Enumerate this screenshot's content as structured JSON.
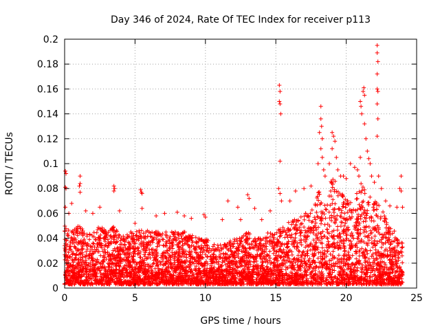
{
  "chart_data": {
    "type": "scatter",
    "title": "Day 346 of 2024, Rate Of TEC Index for receiver p113",
    "xlabel": "GPS time / hours",
    "ylabel": "ROTI / TECUs",
    "xlim": [
      0,
      25
    ],
    "ylim": [
      0,
      0.2
    ],
    "xticks": [
      0,
      5,
      10,
      15,
      20,
      25
    ],
    "yticks": [
      0,
      0.02,
      0.04,
      0.06,
      0.08,
      0.1,
      0.12,
      0.14,
      0.16,
      0.18,
      0.2
    ],
    "grid": true,
    "legend": "none",
    "marker": "plus",
    "color": "#ff0000",
    "x_range_of_data": [
      0,
      24
    ],
    "envelope": {
      "x": [
        0,
        0.5,
        1,
        1.5,
        2,
        2.5,
        3,
        3.5,
        4,
        4.5,
        5,
        5.5,
        6,
        6.5,
        7,
        7.5,
        8,
        8.5,
        9,
        9.5,
        10,
        10.5,
        11,
        11.5,
        12,
        12.5,
        13,
        13.5,
        14,
        14.5,
        15,
        15.5,
        16,
        16.5,
        17,
        17.5,
        18,
        18.5,
        19,
        19.5,
        20,
        20.5,
        21,
        21.5,
        22,
        22.5,
        23,
        23.5,
        24
      ],
      "typical_max": [
        0.05,
        0.045,
        0.05,
        0.045,
        0.045,
        0.05,
        0.045,
        0.05,
        0.04,
        0.045,
        0.045,
        0.05,
        0.045,
        0.045,
        0.045,
        0.045,
        0.045,
        0.045,
        0.045,
        0.04,
        0.04,
        0.035,
        0.035,
        0.035,
        0.04,
        0.04,
        0.045,
        0.04,
        0.04,
        0.045,
        0.045,
        0.05,
        0.055,
        0.055,
        0.06,
        0.06,
        0.08,
        0.07,
        0.09,
        0.08,
        0.07,
        0.07,
        0.085,
        0.075,
        0.07,
        0.065,
        0.05,
        0.045,
        0.04
      ]
    },
    "spikes": [
      {
        "x": 0.05,
        "y": 0.094
      },
      {
        "x": 0.1,
        "y": 0.092
      },
      {
        "x": 0.05,
        "y": 0.081
      },
      {
        "x": 0.1,
        "y": 0.08
      },
      {
        "x": 0.05,
        "y": 0.065
      },
      {
        "x": 0.3,
        "y": 0.06
      },
      {
        "x": 0.5,
        "y": 0.068
      },
      {
        "x": 1.1,
        "y": 0.09
      },
      {
        "x": 1.1,
        "y": 0.084
      },
      {
        "x": 1.05,
        "y": 0.082
      },
      {
        "x": 1.1,
        "y": 0.077
      },
      {
        "x": 1.5,
        "y": 0.062
      },
      {
        "x": 2.5,
        "y": 0.065
      },
      {
        "x": 2.0,
        "y": 0.06
      },
      {
        "x": 3.5,
        "y": 0.082
      },
      {
        "x": 3.55,
        "y": 0.08
      },
      {
        "x": 3.5,
        "y": 0.078
      },
      {
        "x": 3.9,
        "y": 0.062
      },
      {
        "x": 5.4,
        "y": 0.079
      },
      {
        "x": 5.45,
        "y": 0.077
      },
      {
        "x": 5.5,
        "y": 0.076
      },
      {
        "x": 5.5,
        "y": 0.064
      },
      {
        "x": 5.0,
        "y": 0.052
      },
      {
        "x": 6.5,
        "y": 0.058
      },
      {
        "x": 7.1,
        "y": 0.06
      },
      {
        "x": 8.0,
        "y": 0.061
      },
      {
        "x": 8.5,
        "y": 0.058
      },
      {
        "x": 9.0,
        "y": 0.056
      },
      {
        "x": 9.9,
        "y": 0.059
      },
      {
        "x": 10.0,
        "y": 0.057
      },
      {
        "x": 11.6,
        "y": 0.07
      },
      {
        "x": 11.2,
        "y": 0.055
      },
      {
        "x": 12.3,
        "y": 0.065
      },
      {
        "x": 12.5,
        "y": 0.055
      },
      {
        "x": 13.0,
        "y": 0.075
      },
      {
        "x": 13.1,
        "y": 0.072
      },
      {
        "x": 13.5,
        "y": 0.064
      },
      {
        "x": 14.0,
        "y": 0.055
      },
      {
        "x": 14.6,
        "y": 0.062
      },
      {
        "x": 15.2,
        "y": 0.08
      },
      {
        "x": 15.25,
        "y": 0.163
      },
      {
        "x": 15.3,
        "y": 0.158
      },
      {
        "x": 15.25,
        "y": 0.15
      },
      {
        "x": 15.3,
        "y": 0.148
      },
      {
        "x": 15.35,
        "y": 0.14
      },
      {
        "x": 15.3,
        "y": 0.102
      },
      {
        "x": 15.3,
        "y": 0.076
      },
      {
        "x": 15.4,
        "y": 0.07
      },
      {
        "x": 16.0,
        "y": 0.07
      },
      {
        "x": 16.4,
        "y": 0.078
      },
      {
        "x": 17.0,
        "y": 0.08
      },
      {
        "x": 17.5,
        "y": 0.082
      },
      {
        "x": 18.2,
        "y": 0.146
      },
      {
        "x": 18.2,
        "y": 0.136
      },
      {
        "x": 18.25,
        "y": 0.13
      },
      {
        "x": 18.1,
        "y": 0.125
      },
      {
        "x": 18.3,
        "y": 0.12
      },
      {
        "x": 18.2,
        "y": 0.112
      },
      {
        "x": 18.3,
        "y": 0.105
      },
      {
        "x": 18.0,
        "y": 0.1
      },
      {
        "x": 18.4,
        "y": 0.095
      },
      {
        "x": 18.5,
        "y": 0.09
      },
      {
        "x": 18.8,
        "y": 0.1
      },
      {
        "x": 19.0,
        "y": 0.125
      },
      {
        "x": 19.1,
        "y": 0.122
      },
      {
        "x": 19.2,
        "y": 0.118
      },
      {
        "x": 19.0,
        "y": 0.112
      },
      {
        "x": 19.3,
        "y": 0.105
      },
      {
        "x": 19.4,
        "y": 0.095
      },
      {
        "x": 19.6,
        "y": 0.09
      },
      {
        "x": 19.8,
        "y": 0.09
      },
      {
        "x": 20.0,
        "y": 0.088
      },
      {
        "x": 20.3,
        "y": 0.1
      },
      {
        "x": 20.6,
        "y": 0.097
      },
      {
        "x": 20.8,
        "y": 0.095
      },
      {
        "x": 21.0,
        "y": 0.15
      },
      {
        "x": 21.05,
        "y": 0.146
      },
      {
        "x": 21.1,
        "y": 0.14
      },
      {
        "x": 21.2,
        "y": 0.158
      },
      {
        "x": 21.25,
        "y": 0.161
      },
      {
        "x": 21.3,
        "y": 0.155
      },
      {
        "x": 21.3,
        "y": 0.132
      },
      {
        "x": 21.4,
        "y": 0.12
      },
      {
        "x": 21.5,
        "y": 0.11
      },
      {
        "x": 21.6,
        "y": 0.104
      },
      {
        "x": 21.7,
        "y": 0.1
      },
      {
        "x": 21.8,
        "y": 0.09
      },
      {
        "x": 21.0,
        "y": 0.105
      },
      {
        "x": 20.9,
        "y": 0.09
      },
      {
        "x": 22.2,
        "y": 0.195
      },
      {
        "x": 22.2,
        "y": 0.189
      },
      {
        "x": 22.25,
        "y": 0.182
      },
      {
        "x": 22.2,
        "y": 0.172
      },
      {
        "x": 22.2,
        "y": 0.16
      },
      {
        "x": 22.25,
        "y": 0.158
      },
      {
        "x": 22.2,
        "y": 0.148
      },
      {
        "x": 22.25,
        "y": 0.136
      },
      {
        "x": 22.2,
        "y": 0.122
      },
      {
        "x": 22.3,
        "y": 0.09
      },
      {
        "x": 22.0,
        "y": 0.085
      },
      {
        "x": 22.5,
        "y": 0.08
      },
      {
        "x": 22.8,
        "y": 0.07
      },
      {
        "x": 23.1,
        "y": 0.066
      },
      {
        "x": 23.6,
        "y": 0.065
      },
      {
        "x": 23.9,
        "y": 0.09
      },
      {
        "x": 23.8,
        "y": 0.08
      },
      {
        "x": 23.9,
        "y": 0.078
      },
      {
        "x": 24.0,
        "y": 0.065
      }
    ]
  }
}
